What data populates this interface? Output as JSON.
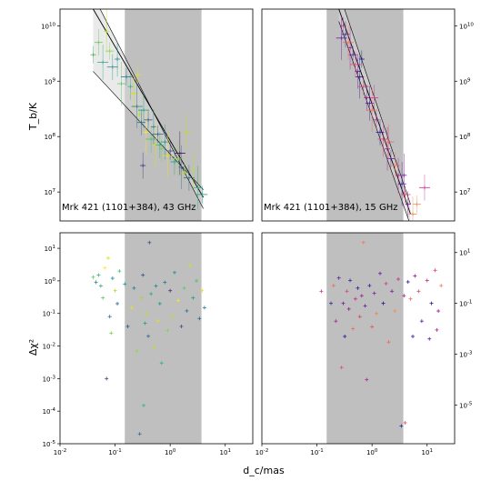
{
  "labels": {
    "ylabel_top": "T_b/K",
    "ylabel_bottom": "Δχ²",
    "xlabel": "d_c/mas"
  },
  "colors": {
    "band": "#bfbfbf",
    "axes": "#000000",
    "model_fill": "#d9d9d9"
  },
  "chart_data": [
    {
      "type": "scatter",
      "panel": "top-left",
      "annotation": "Mrk 421 (1101+384), 43 GHz",
      "xscale": "log",
      "yscale": "log",
      "xlim": [
        0.01,
        31.6
      ],
      "ylim": [
        3000000,
        20000000000
      ],
      "shaded_band": [
        0.15,
        3.7
      ],
      "xticks": [],
      "xtick_labels": [],
      "yticks": [
        10000000,
        100000000,
        1000000000,
        10000000000
      ],
      "ytick_labels": [
        "10^7",
        "10^8",
        "10^9",
        "10^10"
      ],
      "yticks_side": "left",
      "fits": [
        {
          "x": [
            0.04,
            4.0
          ],
          "y": [
            20000000000,
            8000000
          ],
          "style": "center"
        },
        {
          "x": [
            0.04,
            4.0
          ],
          "y": [
            35000000000,
            5000000
          ],
          "style": "bound"
        },
        {
          "x": [
            0.04,
            4.0
          ],
          "y": [
            1500000000,
            11000000
          ],
          "style": "bound"
        }
      ],
      "points": [
        {
          "x": 0.04,
          "y": 3000000000,
          "c": "#4cae5e"
        },
        {
          "x": 0.05,
          "y": 5000000000,
          "c": "#6cc45a"
        },
        {
          "x": 0.06,
          "y": 2200000000,
          "c": "#3aa58a"
        },
        {
          "x": 0.07,
          "y": 8000000000,
          "c": "#b8de2c"
        },
        {
          "x": 0.08,
          "y": 3500000000,
          "c": "#86d549"
        },
        {
          "x": 0.09,
          "y": 1800000000,
          "c": "#2a8c8c"
        },
        {
          "x": 0.11,
          "y": 2500000000,
          "c": "#21908d"
        },
        {
          "x": 0.13,
          "y": 900000000,
          "c": "#5ec962"
        },
        {
          "x": 0.16,
          "y": 1200000000,
          "c": "#2a788e"
        },
        {
          "x": 0.19,
          "y": 800000000,
          "c": "#35b779"
        },
        {
          "x": 0.22,
          "y": 600000000,
          "c": "#d0e11c"
        },
        {
          "x": 0.25,
          "y": 350000000,
          "c": "#2c728e"
        },
        {
          "x": 0.28,
          "y": 250000000,
          "c": "#b5de2b"
        },
        {
          "x": 0.3,
          "y": 180000000,
          "c": "#31688e"
        },
        {
          "x": 0.33,
          "y": 300000000,
          "c": "#1f9e89"
        },
        {
          "x": 0.36,
          "y": 120000000,
          "c": "#fde725"
        },
        {
          "x": 0.4,
          "y": 200000000,
          "c": "#39568c"
        },
        {
          "x": 0.45,
          "y": 90000000,
          "c": "#4ac16d"
        },
        {
          "x": 0.5,
          "y": 150000000,
          "c": "#26828e"
        },
        {
          "x": 0.55,
          "y": 70000000,
          "c": "#d8e219"
        },
        {
          "x": 0.6,
          "y": 110000000,
          "c": "#3b528b"
        },
        {
          "x": 0.7,
          "y": 60000000,
          "c": "#73d056"
        },
        {
          "x": 0.8,
          "y": 80000000,
          "c": "#23888e"
        },
        {
          "x": 0.9,
          "y": 45000000,
          "c": "#e5e419"
        },
        {
          "x": 1.0,
          "y": 55000000,
          "c": "#414487"
        },
        {
          "x": 1.2,
          "y": 35000000,
          "c": "#20a486"
        },
        {
          "x": 1.4,
          "y": 40000000,
          "c": "#90d743"
        },
        {
          "x": 1.6,
          "y": 28000000,
          "c": "#2d708e"
        },
        {
          "x": 1.8,
          "y": 22000000,
          "c": "#a2da37"
        },
        {
          "x": 2.2,
          "y": 18000000,
          "c": "#2e6f8e"
        },
        {
          "x": 2.6,
          "y": 25000000,
          "c": "#bddf26"
        },
        {
          "x": 3.2,
          "y": 12000000,
          "c": "#27ad81"
        },
        {
          "x": 3.8,
          "y": 9000000,
          "c": "#1f968b"
        },
        {
          "x": 0.32,
          "y": 30000000,
          "c": "#46327e"
        },
        {
          "x": 2.0,
          "y": 120000000,
          "c": "#c2df23"
        },
        {
          "x": 1.5,
          "y": 50000000,
          "c": "#440154"
        },
        {
          "x": 0.26,
          "y": 1300000000,
          "c": "#dde318"
        },
        {
          "x": 0.65,
          "y": 70000000,
          "c": "#31b57b"
        }
      ]
    },
    {
      "type": "scatter",
      "panel": "top-right",
      "annotation": "Mrk 421 (1101+384), 15 GHz",
      "xscale": "log",
      "yscale": "log",
      "xlim": [
        0.01,
        31.6
      ],
      "ylim": [
        3000000,
        20000000000
      ],
      "shaded_band": [
        0.15,
        3.7
      ],
      "xticks": [],
      "xtick_labels": [],
      "yticks": [
        10000000,
        100000000,
        1000000000,
        10000000000
      ],
      "ytick_labels": [
        "10^7",
        "10^8",
        "10^9",
        "10^10"
      ],
      "yticks_side": "right",
      "fits": [
        {
          "x": [
            0.25,
            5.0
          ],
          "y": [
            20000000000,
            4000000
          ],
          "style": "center"
        },
        {
          "x": [
            0.25,
            5.0
          ],
          "y": [
            40000000000,
            6000000
          ],
          "style": "bound"
        },
        {
          "x": [
            0.25,
            5.0
          ],
          "y": [
            12000000000,
            2500000
          ],
          "style": "bound"
        }
      ],
      "points": [
        {
          "x": 0.3,
          "y": 10000000000,
          "c": "#c83c8c"
        },
        {
          "x": 0.33,
          "y": 7000000000,
          "c": "#3b2b9c"
        },
        {
          "x": 0.37,
          "y": 5000000000,
          "c": "#f06b5a"
        },
        {
          "x": 0.4,
          "y": 4000000000,
          "c": "#a82296"
        },
        {
          "x": 0.45,
          "y": 3000000000,
          "c": "#5c1fa6"
        },
        {
          "x": 0.5,
          "y": 2000000000,
          "c": "#e04f70"
        },
        {
          "x": 0.55,
          "y": 1500000000,
          "c": "#7a1d9e"
        },
        {
          "x": 0.6,
          "y": 1200000000,
          "c": "#2b1b90"
        },
        {
          "x": 0.7,
          "y": 800000000,
          "c": "#d24a7d"
        },
        {
          "x": 0.8,
          "y": 500000000,
          "c": "#8f1a9a"
        },
        {
          "x": 0.9,
          "y": 400000000,
          "c": "#4a20a0"
        },
        {
          "x": 1.0,
          "y": 300000000,
          "c": "#ee6c5c"
        },
        {
          "x": 1.2,
          "y": 200000000,
          "c": "#bd2c8f"
        },
        {
          "x": 1.4,
          "y": 120000000,
          "c": "#31179a"
        },
        {
          "x": 1.6,
          "y": 90000000,
          "c": "#d9416e"
        },
        {
          "x": 1.9,
          "y": 60000000,
          "c": "#9b1b98"
        },
        {
          "x": 2.2,
          "y": 40000000,
          "c": "#5a24a1"
        },
        {
          "x": 2.6,
          "y": 30000000,
          "c": "#f37a58"
        },
        {
          "x": 3.0,
          "y": 20000000,
          "c": "#b1228f"
        },
        {
          "x": 3.5,
          "y": 14000000,
          "c": "#3e1d9a"
        },
        {
          "x": 4.0,
          "y": 9000000,
          "c": "#e7535f"
        },
        {
          "x": 4.5,
          "y": 6000000,
          "c": "#8c1d9b"
        },
        {
          "x": 5.5,
          "y": 4000000,
          "c": "#f2814f"
        },
        {
          "x": 0.28,
          "y": 6000000000,
          "c": "#6a1f9f"
        },
        {
          "x": 0.65,
          "y": 2500000000,
          "c": "#1f1688"
        },
        {
          "x": 1.1,
          "y": 500000000,
          "c": "#cf3a86"
        },
        {
          "x": 2.0,
          "y": 80000000,
          "c": "#f26561"
        },
        {
          "x": 3.8,
          "y": 20000000,
          "c": "#7e1f9c"
        },
        {
          "x": 6.5,
          "y": 6000000,
          "c": "#f38e52"
        },
        {
          "x": 9.0,
          "y": 12000000,
          "c": "#c7308c"
        }
      ]
    },
    {
      "type": "scatter",
      "panel": "bottom-left",
      "xscale": "log",
      "yscale": "log",
      "xlim": [
        0.01,
        31.6
      ],
      "ylim": [
        1e-05,
        30
      ],
      "shaded_band": [
        0.15,
        3.7
      ],
      "xticks": [
        0.01,
        0.1,
        1,
        10
      ],
      "xtick_labels": [
        "10^-2",
        "10^-1",
        "10^0",
        "10^1"
      ],
      "yticks": [
        1e-05,
        0.0001,
        0.001,
        0.01,
        0.1,
        1,
        10
      ],
      "ytick_labels": [
        "10^-5",
        "10^-4",
        "10^-3",
        "10^-2",
        "10^-1",
        "10^0",
        "10^1"
      ],
      "yticks_side": "left",
      "points": [
        {
          "x": 0.04,
          "y": 1.3,
          "c": "#6cc45a"
        },
        {
          "x": 0.045,
          "y": 0.9,
          "c": "#2a8c8c"
        },
        {
          "x": 0.05,
          "y": 1.5,
          "c": "#35b779"
        },
        {
          "x": 0.055,
          "y": 0.7,
          "c": "#3aa58a"
        },
        {
          "x": 0.06,
          "y": 0.3,
          "c": "#5ec962"
        },
        {
          "x": 0.065,
          "y": 2.5,
          "c": "#fde725"
        },
        {
          "x": 0.07,
          "y": 0.001,
          "c": "#414487"
        },
        {
          "x": 0.075,
          "y": 5.0,
          "c": "#d8e219"
        },
        {
          "x": 0.08,
          "y": 0.08,
          "c": "#2c728e"
        },
        {
          "x": 0.085,
          "y": 0.025,
          "c": "#73d056"
        },
        {
          "x": 0.09,
          "y": 1.2,
          "c": "#21908d"
        },
        {
          "x": 0.1,
          "y": 0.5,
          "c": "#b5de2b"
        },
        {
          "x": 0.11,
          "y": 0.2,
          "c": "#31688e"
        },
        {
          "x": 0.12,
          "y": 2.0,
          "c": "#4ac16d"
        },
        {
          "x": 0.15,
          "y": 0.8,
          "c": "#1f9e89"
        },
        {
          "x": 0.17,
          "y": 0.04,
          "c": "#39568c"
        },
        {
          "x": 0.2,
          "y": 0.15,
          "c": "#e5e419"
        },
        {
          "x": 0.22,
          "y": 0.6,
          "c": "#26828e"
        },
        {
          "x": 0.25,
          "y": 0.007,
          "c": "#90d743"
        },
        {
          "x": 0.28,
          "y": 2e-05,
          "c": "#2d708e"
        },
        {
          "x": 0.3,
          "y": 0.3,
          "c": "#a2da37"
        },
        {
          "x": 0.32,
          "y": 1.5,
          "c": "#3b528b"
        },
        {
          "x": 0.35,
          "y": 0.05,
          "c": "#20a486"
        },
        {
          "x": 0.38,
          "y": 0.1,
          "c": "#bddf26"
        },
        {
          "x": 0.4,
          "y": 0.02,
          "c": "#2e6f8e"
        },
        {
          "x": 0.45,
          "y": 0.4,
          "c": "#27ad81"
        },
        {
          "x": 0.5,
          "y": 0.009,
          "c": "#c2df23"
        },
        {
          "x": 0.55,
          "y": 0.7,
          "c": "#23888e"
        },
        {
          "x": 0.6,
          "y": 0.06,
          "c": "#dde318"
        },
        {
          "x": 0.65,
          "y": 0.2,
          "c": "#1f968b"
        },
        {
          "x": 0.7,
          "y": 0.003,
          "c": "#31b57b"
        },
        {
          "x": 0.8,
          "y": 0.9,
          "c": "#2a788e"
        },
        {
          "x": 0.9,
          "y": 0.03,
          "c": "#86d549"
        },
        {
          "x": 1.0,
          "y": 0.5,
          "c": "#46327e"
        },
        {
          "x": 1.1,
          "y": 0.08,
          "c": "#b8de2c"
        },
        {
          "x": 1.2,
          "y": 1.8,
          "c": "#21908d"
        },
        {
          "x": 1.4,
          "y": 0.25,
          "c": "#fde725"
        },
        {
          "x": 1.6,
          "y": 0.04,
          "c": "#3b528b"
        },
        {
          "x": 1.8,
          "y": 0.6,
          "c": "#5ec962"
        },
        {
          "x": 2.0,
          "y": 0.12,
          "c": "#2c728e"
        },
        {
          "x": 2.3,
          "y": 3.0,
          "c": "#d0e11c"
        },
        {
          "x": 2.6,
          "y": 0.3,
          "c": "#1f9e89"
        },
        {
          "x": 3.0,
          "y": 1.0,
          "c": "#4ac16d"
        },
        {
          "x": 3.4,
          "y": 0.07,
          "c": "#31688e"
        },
        {
          "x": 3.8,
          "y": 0.5,
          "c": "#e5e419"
        },
        {
          "x": 4.2,
          "y": 0.15,
          "c": "#26828e"
        },
        {
          "x": 0.33,
          "y": 0.00015,
          "c": "#35b779"
        },
        {
          "x": 0.42,
          "y": 15.0,
          "c": "#39568c"
        }
      ]
    },
    {
      "type": "scatter",
      "panel": "bottom-right",
      "xscale": "log",
      "yscale": "log",
      "xlim": [
        0.01,
        31.6
      ],
      "ylim": [
        3e-07,
        60
      ],
      "shaded_band": [
        0.15,
        3.7
      ],
      "xticks": [
        0.01,
        0.1,
        1,
        10
      ],
      "xtick_labels": [
        "10^-2",
        "10^-1",
        "10^0",
        "10^1"
      ],
      "yticks": [
        1e-05,
        0.001,
        0.1,
        10
      ],
      "ytick_labels": [
        "10^-5",
        "10^-3",
        "10^-1",
        "10^1"
      ],
      "yticks_side": "right",
      "points": [
        {
          "x": 0.12,
          "y": 0.3,
          "c": "#c83c8c"
        },
        {
          "x": 0.18,
          "y": 0.1,
          "c": "#3b2b9c"
        },
        {
          "x": 0.2,
          "y": 0.5,
          "c": "#f06b5a"
        },
        {
          "x": 0.22,
          "y": 0.02,
          "c": "#a82296"
        },
        {
          "x": 0.25,
          "y": 1.0,
          "c": "#5c1fa6"
        },
        {
          "x": 0.28,
          "y": 0.0003,
          "c": "#e04f70"
        },
        {
          "x": 0.3,
          "y": 0.1,
          "c": "#7a1d9e"
        },
        {
          "x": 0.32,
          "y": 0.005,
          "c": "#2b1b90"
        },
        {
          "x": 0.35,
          "y": 0.3,
          "c": "#d24a7d"
        },
        {
          "x": 0.38,
          "y": 0.06,
          "c": "#8f1a9a"
        },
        {
          "x": 0.4,
          "y": 0.8,
          "c": "#4a20a0"
        },
        {
          "x": 0.45,
          "y": 0.01,
          "c": "#ee6c5c"
        },
        {
          "x": 0.5,
          "y": 0.15,
          "c": "#bd2c8f"
        },
        {
          "x": 0.55,
          "y": 0.4,
          "c": "#31179a"
        },
        {
          "x": 0.6,
          "y": 0.03,
          "c": "#d9416e"
        },
        {
          "x": 0.65,
          "y": 0.2,
          "c": "#9b1b98"
        },
        {
          "x": 0.7,
          "y": 25.0,
          "c": "#f37a58"
        },
        {
          "x": 0.75,
          "y": 0.08,
          "c": "#5a24a1"
        },
        {
          "x": 0.8,
          "y": 0.0001,
          "c": "#b1228f"
        },
        {
          "x": 0.9,
          "y": 0.5,
          "c": "#3e1d9a"
        },
        {
          "x": 1.0,
          "y": 0.012,
          "c": "#e7535f"
        },
        {
          "x": 1.1,
          "y": 0.25,
          "c": "#8c1d9b"
        },
        {
          "x": 1.2,
          "y": 0.04,
          "c": "#f2814f"
        },
        {
          "x": 1.4,
          "y": 1.5,
          "c": "#6a1f9f"
        },
        {
          "x": 1.6,
          "y": 0.1,
          "c": "#1f1688"
        },
        {
          "x": 1.8,
          "y": 0.6,
          "c": "#cf3a86"
        },
        {
          "x": 2.0,
          "y": 0.003,
          "c": "#f26561"
        },
        {
          "x": 2.3,
          "y": 0.3,
          "c": "#7e1f9c"
        },
        {
          "x": 2.6,
          "y": 0.05,
          "c": "#f38e52"
        },
        {
          "x": 3.0,
          "y": 0.9,
          "c": "#c7308c"
        },
        {
          "x": 3.4,
          "y": 1.5e-06,
          "c": "#3b2b9c"
        },
        {
          "x": 3.8,
          "y": 0.2,
          "c": "#a82296"
        },
        {
          "x": 4.0,
          "y": 2e-06,
          "c": "#e04f70"
        },
        {
          "x": 4.5,
          "y": 0.7,
          "c": "#2b1b90"
        },
        {
          "x": 5.0,
          "y": 0.15,
          "c": "#f06b5a"
        },
        {
          "x": 6.0,
          "y": 1.2,
          "c": "#8f1a9a"
        },
        {
          "x": 7.0,
          "y": 0.3,
          "c": "#d24a7d"
        },
        {
          "x": 8.0,
          "y": 0.02,
          "c": "#4a20a0"
        },
        {
          "x": 10.0,
          "y": 0.8,
          "c": "#bd2c8f"
        },
        {
          "x": 12.0,
          "y": 0.1,
          "c": "#31179a"
        },
        {
          "x": 14.0,
          "y": 2.0,
          "c": "#d9416e"
        },
        {
          "x": 16.0,
          "y": 0.05,
          "c": "#9b1b98"
        },
        {
          "x": 18.0,
          "y": 0.5,
          "c": "#f37a58"
        },
        {
          "x": 11.0,
          "y": 0.004,
          "c": "#5a24a1"
        },
        {
          "x": 15.0,
          "y": 0.009,
          "c": "#b1228f"
        },
        {
          "x": 5.5,
          "y": 0.005,
          "c": "#3e1d9a"
        }
      ]
    }
  ]
}
